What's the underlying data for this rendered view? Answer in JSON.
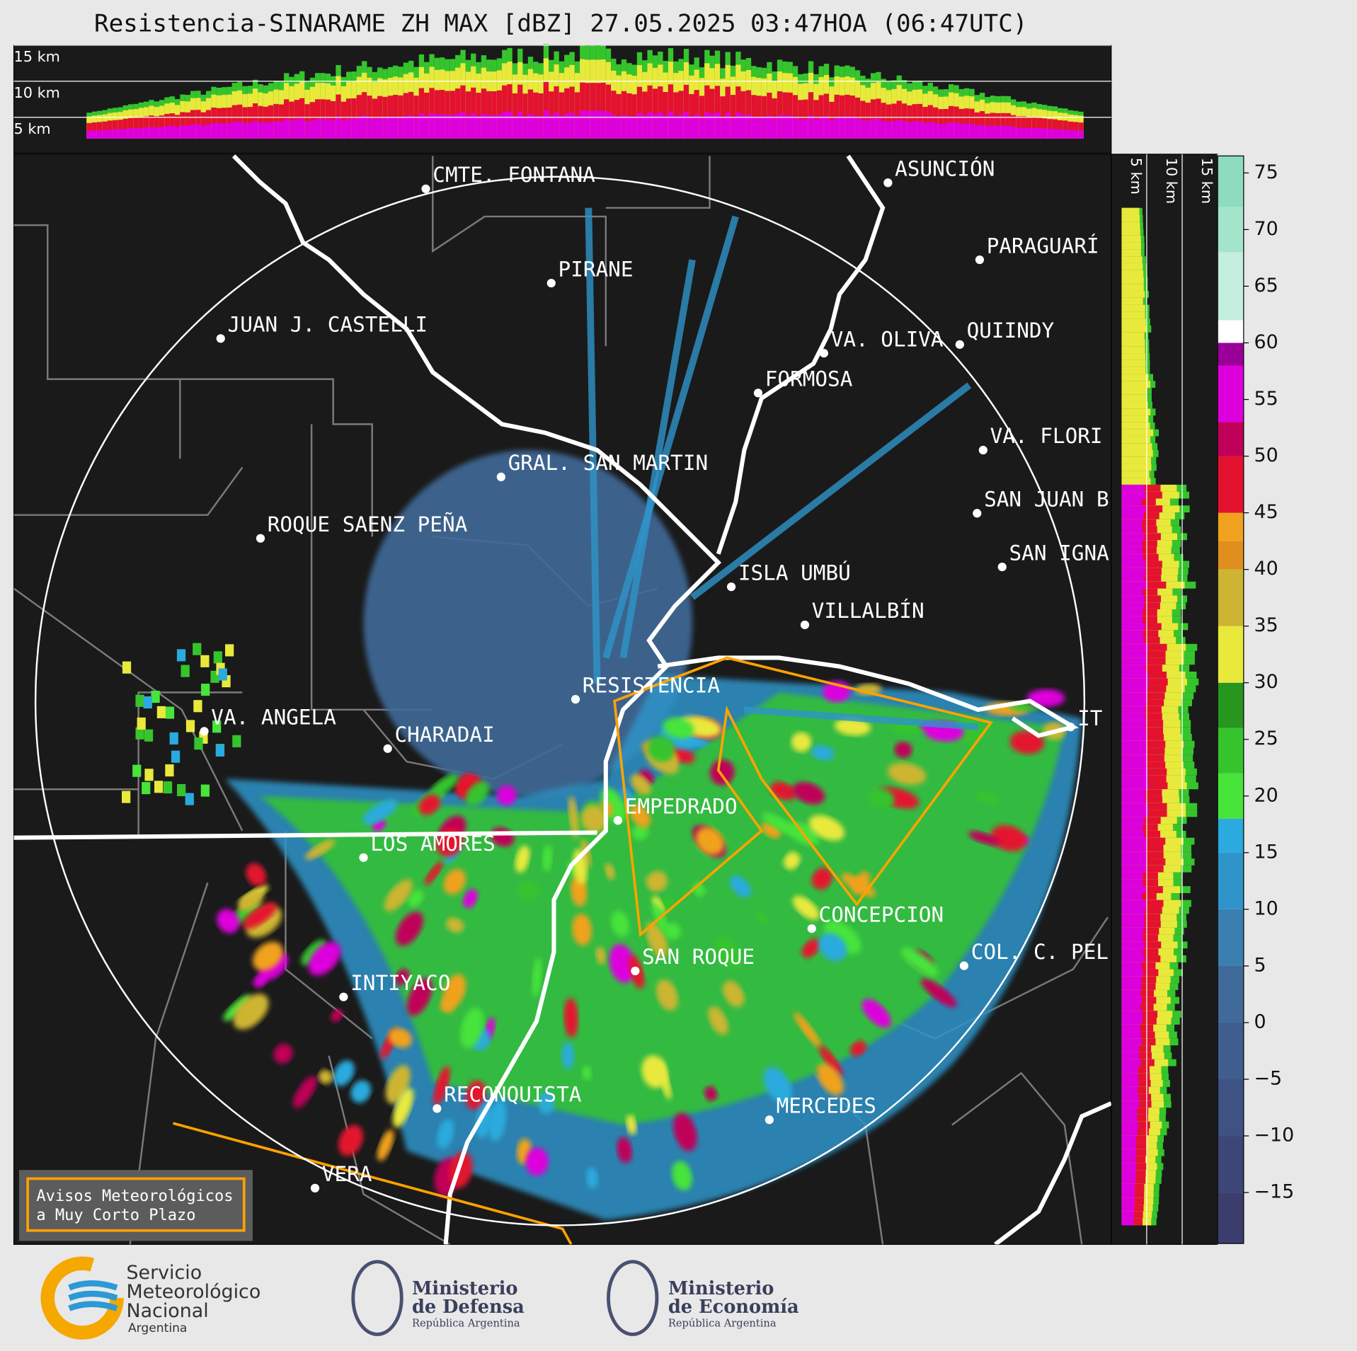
{
  "title": "Resistencia-SINARAME ZH MAX [dBZ] 27.05.2025 03:47HOA (06:47UTC)",
  "height_axis": {
    "lim": [
      0,
      15
    ],
    "ticks": [
      {
        "value": 15,
        "label": "15 km"
      },
      {
        "value": 10,
        "label": "10 km"
      },
      {
        "value": 5,
        "label": "5 km"
      }
    ]
  },
  "cities": [
    "CMTE. FONTANA",
    "ASUNCIÓN",
    "PARAGUARÍ",
    "PIRANE",
    "JUAN J. CASTELLI",
    "VA. OLIVA",
    "QUIINDY",
    "FORMOSA",
    "VA. FLORI",
    "GRAL. SAN MARTIN",
    "SAN JUAN B",
    "ROQUE SAENZ PEÑA",
    "SAN IGNA",
    "ISLA UMBÚ",
    "VILLALBÍN",
    "RESISTENCIA",
    "VA. ANGELA",
    "CHARADAI",
    "IT",
    "EMPEDRADO",
    "LOS AMORES",
    "CONCEPCION",
    "SAN ROQUE",
    "COL. C. PEL",
    "INTIYACO",
    "RECONQUISTA",
    "MERCEDES",
    "VERA"
  ],
  "colorbar": {
    "lim": [
      -19.5,
      76.5
    ],
    "ticks": [
      75,
      70,
      65,
      60,
      55,
      50,
      45,
      40,
      35,
      30,
      25,
      20,
      15,
      10,
      5,
      0,
      {
        "value": -5,
        "label": "−5"
      },
      {
        "value": -10,
        "label": "−10"
      },
      {
        "value": -15,
        "label": "−15"
      }
    ],
    "bands": [
      [
        -19.5,
        "#3b3d6c"
      ],
      [
        -15,
        "#3d4677"
      ],
      [
        -10,
        "#3e5283"
      ],
      [
        -5,
        "#3f5e8f"
      ],
      [
        0,
        "#3f6a99"
      ],
      [
        5,
        "#3a7fb0"
      ],
      [
        10,
        "#2f94c9"
      ],
      [
        15,
        "#2aaade"
      ],
      [
        18,
        "#47e43a"
      ],
      [
        22,
        "#36c42d"
      ],
      [
        26,
        "#26961f"
      ],
      [
        30,
        "#e9e93c"
      ],
      [
        35,
        "#cdb533"
      ],
      [
        40,
        "#e08f1e"
      ],
      [
        42.5,
        "#f0a21e"
      ],
      [
        45,
        "#e3122f"
      ],
      [
        50,
        "#c00058"
      ],
      [
        53,
        "#dd00dd"
      ],
      [
        58,
        "#9a009a"
      ],
      [
        60,
        "#ffffff"
      ],
      [
        62,
        "#c4eedd"
      ],
      [
        68,
        "#a3e6cc"
      ],
      [
        72,
        "#8edcbd"
      ]
    ]
  },
  "warning_box": [
    "Avisos Meteorológicos",
    "a Muy Corto Plazo"
  ],
  "footer": {
    "smn": [
      "Servicio",
      "Meteorológico",
      "Nacional",
      "Argentina"
    ],
    "defensa": [
      "Ministerio",
      "de Defensa",
      "República Argentina"
    ],
    "economia": [
      "Ministerio",
      "de Economía",
      "República Argentina"
    ]
  }
}
